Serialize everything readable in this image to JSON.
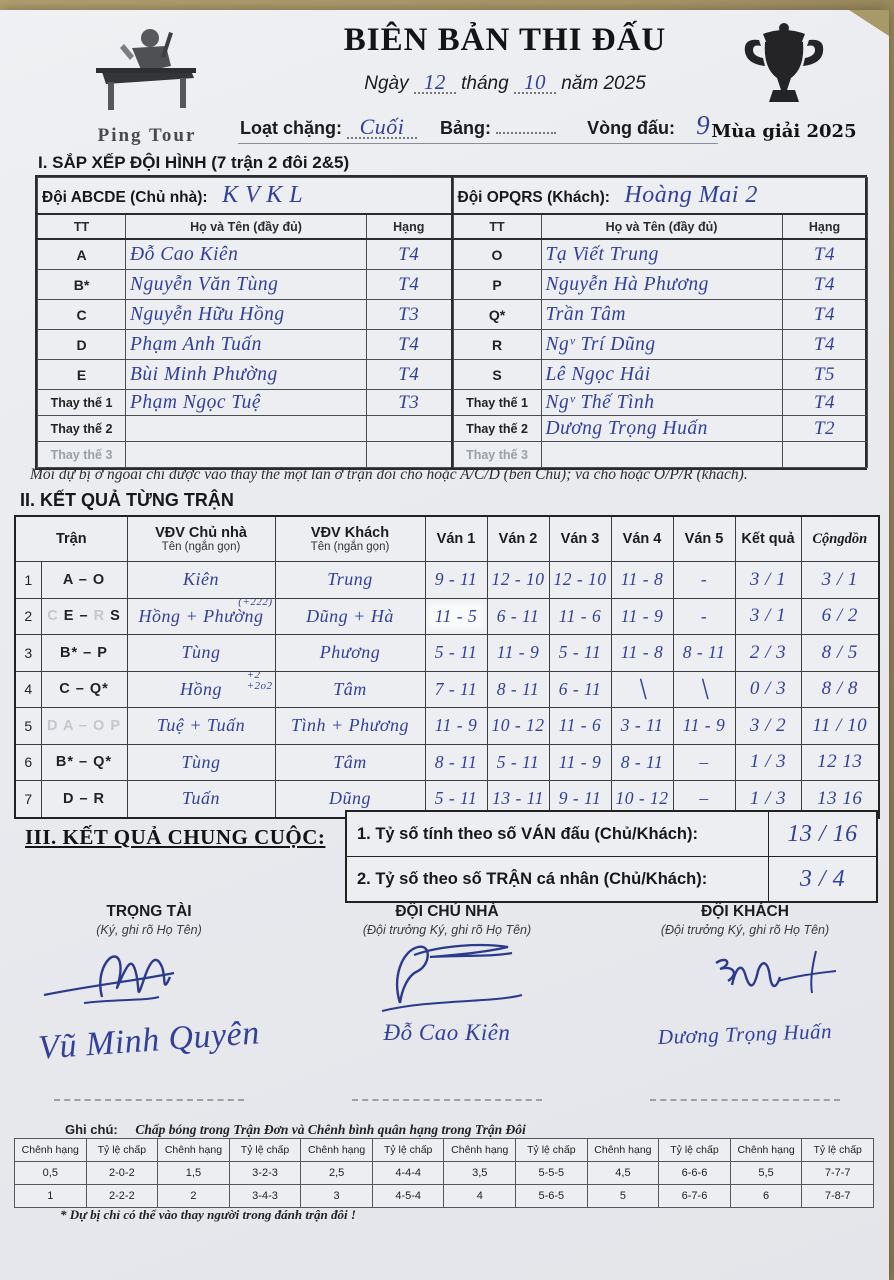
{
  "colors": {
    "ink": "#32409b",
    "paper": "#eceef1",
    "ghost": "#c3c7cf",
    "tan": "#a99868"
  },
  "page": {
    "title": "BIÊN BẢN THI ĐẤU",
    "date_prefix": "Ngày",
    "date_day": "12",
    "date_month_label": "tháng",
    "date_month": "10",
    "date_year_label": "năm 2025",
    "stage_label": "Loạt chặng:",
    "stage_value": "Cuối",
    "group_label": "Bảng:",
    "group_value": "",
    "round_label": "Vòng đấu:",
    "round_value": "9",
    "logo_text": "Ping Tour",
    "season_text": "Mùa giải 2025"
  },
  "section1": {
    "title": "I. SẮP XẾP ĐỘI HÌNH",
    "subtitle": "(7 trận 2 đôi 2&5)",
    "cols": [
      "TT",
      "Họ và Tên (đầy đủ)",
      "Hạng"
    ],
    "home": {
      "label": "Đội ABCDE (Chủ nhà):",
      "team": "K V K L",
      "rows": [
        [
          "A",
          "Đỗ Cao Kiên",
          "T4"
        ],
        [
          "B*",
          "Nguyễn Văn Tùng",
          "T4"
        ],
        [
          "C",
          "Nguyễn Hữu Hồng",
          "T3"
        ],
        [
          "D",
          "Phạm Anh Tuấn",
          "T4"
        ],
        [
          "E",
          "Bùi Minh Phường",
          "T4"
        ],
        [
          "Thay thế 1",
          "Phạm Ngọc Tuệ",
          "T3"
        ],
        [
          "Thay thế 2",
          "",
          ""
        ],
        [
          "Thay thế 3",
          "",
          ""
        ]
      ]
    },
    "away": {
      "label": "Đội OPQRS (Khách):",
      "team": "Hoàng Mai 2",
      "rows": [
        [
          "O",
          "Tạ Viết Trung",
          "T4"
        ],
        [
          "P",
          "Nguyễn Hà Phương",
          "T4"
        ],
        [
          "Q*",
          "Trần Tâm",
          "T4"
        ],
        [
          "R",
          "Ngᵛ Trí Dũng",
          "T4"
        ],
        [
          "S",
          "Lê Ngọc Hải",
          "T5"
        ],
        [
          "Thay thế 1",
          "Ngᵛ Thế Tình",
          "T4"
        ],
        [
          "Thay thế 2",
          "Dương Trọng Huấn",
          "T2"
        ],
        [
          "Thay thế 3",
          "",
          ""
        ]
      ]
    },
    "note": "Mỗi dự bị ở ngoài chỉ được vào thay thế một lần ở trận đôi cho hoặc A/C/D (bên Chủ); và cho hoặc O/P/R (khách)."
  },
  "section2": {
    "title": "II. KẾT QUẢ TỪNG TRẬN",
    "headers": {
      "tran": "Trận",
      "home": "VĐV Chủ nhà",
      "home_sub": "Tên (ngắn gọn)",
      "away": "VĐV Khách",
      "away_sub": "Tên (ngắn gọn)",
      "vans": [
        "Ván 1",
        "Ván 2",
        "Ván 3",
        "Ván 4",
        "Ván 5"
      ],
      "result": "Kết quả",
      "cumulative": "Cộngdồn"
    },
    "rows": [
      {
        "no": "1",
        "label": [
          [
            "A – O",
            0
          ]
        ],
        "home": "Kiên",
        "note": "",
        "away": "Trung",
        "vans": [
          "9 - 11",
          "12 - 10",
          "12 - 10",
          "11 - 8",
          "-"
        ],
        "result": "3 / 1",
        "cumulative": "3 / 1",
        "patch": false
      },
      {
        "no": "2",
        "label": [
          [
            "C",
            1
          ],
          [
            "E",
            0
          ],
          [
            "–",
            0
          ],
          [
            "R",
            1
          ],
          [
            "S",
            0
          ]
        ],
        "home": "Hồng + Phường",
        "note": "(+222)",
        "away": "Dũng + Hà",
        "vans": [
          "11 - 5",
          "6 - 11",
          "11 - 6",
          "11 - 9",
          "-"
        ],
        "result": "3 / 1",
        "cumulative": "6 / 2",
        "patch": true
      },
      {
        "no": "3",
        "label": [
          [
            "B* – P",
            0
          ]
        ],
        "home": "Tùng",
        "note": "",
        "away": "Phương",
        "vans": [
          "5 - 11",
          "11 - 9",
          "5 - 11",
          "11 - 8",
          "8 - 11"
        ],
        "result": "2 / 3",
        "cumulative": "8 / 5",
        "patch": false
      },
      {
        "no": "4",
        "label": [
          [
            "C – Q*",
            0
          ]
        ],
        "home": "Hồng",
        "note": "+2\n+2o2",
        "away": "Tâm",
        "vans": [
          "7 - 11",
          "8 - 11",
          "6 - 11",
          "╲",
          "╲"
        ],
        "result": "0 / 3",
        "cumulative": "8 / 8",
        "patch": false
      },
      {
        "no": "5",
        "label": [
          [
            "D A – O P",
            1
          ]
        ],
        "home": "Tuệ + Tuấn",
        "note": "",
        "away": "Tình + Phương",
        "vans": [
          "11 - 9",
          "10 - 12",
          "11 - 6",
          "3 - 11",
          "11 - 9"
        ],
        "result": "3 / 2",
        "cumulative": "11 / 10",
        "patch": false
      },
      {
        "no": "6",
        "label": [
          [
            "B* – Q*",
            0
          ]
        ],
        "home": "Tùng",
        "note": "",
        "away": "Tâm",
        "vans": [
          "8 - 11",
          "5 - 11",
          "11 - 9",
          "8 - 11",
          "–"
        ],
        "result": "1 / 3",
        "cumulative": "12 13",
        "patch": false
      },
      {
        "no": "7",
        "label": [
          [
            "D – R",
            0
          ]
        ],
        "home": "Tuấn",
        "note": "",
        "away": "Dũng",
        "vans": [
          "5 - 11",
          "13 - 11",
          "9 - 11",
          "10 - 12",
          "–"
        ],
        "result": "1 / 3",
        "cumulative": "13 16",
        "patch": false
      }
    ]
  },
  "section3": {
    "title": "III. KẾT QUẢ CHUNG CUỘC:",
    "rows": [
      {
        "label": "1. Tỷ số tính theo số VÁN đấu  (Chủ/Khách):",
        "value": "13 / 16"
      },
      {
        "label": "2. Tỷ số theo số TRẬN cá nhân (Chủ/Khách):",
        "value": "3 / 4"
      }
    ]
  },
  "signatures": [
    {
      "title": "TRỌNG TÀI",
      "subtitle": "(Ký, ghi rõ Họ Tên)",
      "name": "Vũ Minh Quyên"
    },
    {
      "title": "ĐỘI CHỦ NHÀ",
      "subtitle": "(Đội trưởng Ký, ghi rõ Họ Tên)",
      "name": "Đỗ Cao Kiên"
    },
    {
      "title": "ĐỘI KHÁCH",
      "subtitle": "(Đội trưởng Ký, ghi rõ Họ Tên)",
      "name": "Dương Trọng Huấn"
    }
  ],
  "footer": {
    "label": "Ghi chú:",
    "text": "Chấp bóng trong Trận Đơn và Chênh bình quân hạng trong Trận Đôi",
    "col_headers": [
      "Chênh hạng",
      "Tỷ lệ chấp"
    ],
    "rows": [
      [
        "0,5",
        "2-0-2",
        "1,5",
        "3-2-3",
        "2,5",
        "4-4-4",
        "3,5",
        "5-5-5",
        "4,5",
        "6-6-6",
        "5,5",
        "7-7-7"
      ],
      [
        "1",
        "2-2-2",
        "2",
        "3-4-3",
        "3",
        "4-5-4",
        "4",
        "5-6-5",
        "5",
        "6-7-6",
        "6",
        "7-8-7"
      ]
    ],
    "footnote": "* Dự bị chỉ có thể vào thay người trong đánh trận đôi !"
  }
}
